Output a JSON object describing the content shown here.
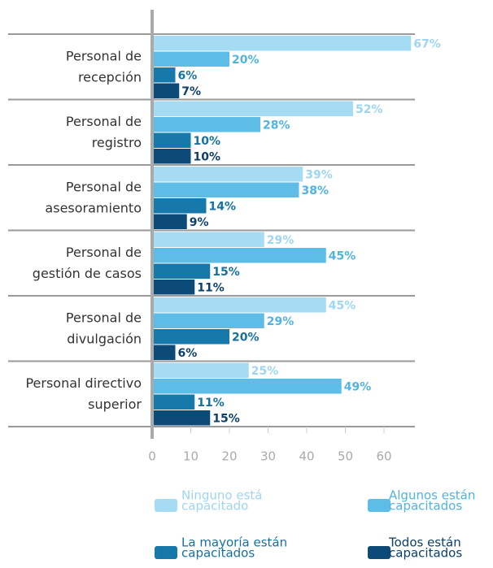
{
  "chart_data": {
    "type": "bar",
    "orientation": "horizontal",
    "categories": [
      "Personal de\nrecepción",
      "Personal de\nregistro",
      "Personal de\nasesoramiento",
      "Personal de\ngestión de casos",
      "Personal de\ndivulgación",
      "Personal directivo\nsuperior"
    ],
    "series": [
      {
        "name": "Ninguno está\ncapacitado",
        "color": "#a6dbf4",
        "label_color": "#9ed6f2",
        "values": [
          67,
          52,
          39,
          29,
          45,
          25
        ],
        "value_labels": [
          "67%",
          "52%",
          "39%",
          "29%",
          "45%",
          "25%"
        ]
      },
      {
        "name": "Algunos están\ncapacitados",
        "color": "#5dbde6",
        "label_color": "#4fb4e0",
        "values": [
          20,
          28,
          38,
          45,
          29,
          49
        ],
        "value_labels": [
          "20%",
          "28%",
          "38%",
          "45%",
          "29%",
          "49%"
        ]
      },
      {
        "name": "La mayoría están\ncapacitados",
        "color": "#1779aa",
        "label_color": "#16709f",
        "values": [
          6,
          10,
          14,
          15,
          20,
          11
        ],
        "value_labels": [
          "6%",
          "10%",
          "14%",
          "15%",
          "20%",
          "11%"
        ]
      },
      {
        "name": "Todos están\ncapacitados",
        "color": "#0c4a78",
        "label_color": "#0c3f69",
        "values": [
          7,
          10,
          9,
          11,
          6,
          15
        ],
        "value_labels": [
          "7%",
          "10%",
          "9%",
          "11%",
          "6%",
          "15%"
        ]
      }
    ],
    "xlim": [
      0,
      68
    ],
    "xticks": [
      0,
      10,
      20,
      30,
      40,
      50,
      60
    ],
    "legend": "bottom"
  }
}
